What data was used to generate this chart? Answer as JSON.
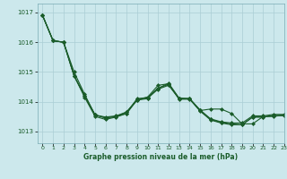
{
  "title": "Graphe pression niveau de la mer (hPa)",
  "background_color": "#cce8ec",
  "grid_color": "#aacdd4",
  "line_color": "#1a5c2a",
  "xlim": [
    -0.5,
    23
  ],
  "ylim": [
    1012.6,
    1017.3
  ],
  "yticks": [
    1013,
    1014,
    1015,
    1016,
    1017
  ],
  "xticks": [
    0,
    1,
    2,
    3,
    4,
    5,
    6,
    7,
    8,
    9,
    10,
    11,
    12,
    13,
    14,
    15,
    16,
    17,
    18,
    19,
    20,
    21,
    22,
    23
  ],
  "series": [
    [
      1016.9,
      1016.05,
      1016.0,
      1015.0,
      1014.25,
      1013.55,
      1013.48,
      1013.52,
      1013.65,
      1014.08,
      1014.15,
      1014.45,
      1014.62,
      1014.12,
      1014.1,
      1013.72,
      1013.42,
      1013.32,
      1013.28,
      1013.28,
      1013.52,
      1013.52,
      1013.57,
      1013.57
    ],
    [
      1016.9,
      1016.05,
      1016.0,
      1014.87,
      1014.2,
      1013.55,
      1013.45,
      1013.5,
      1013.6,
      1014.1,
      1014.12,
      1014.42,
      1014.55,
      1014.1,
      1014.1,
      1013.7,
      1013.75,
      1013.75,
      1013.6,
      1013.25,
      1013.25,
      1013.5,
      1013.5,
      1013.55
    ],
    [
      1016.9,
      1016.05,
      1016.0,
      1014.87,
      1014.2,
      1013.55,
      1013.45,
      1013.5,
      1013.65,
      1014.05,
      1014.15,
      1014.55,
      1014.6,
      1014.1,
      1014.1,
      1013.7,
      1013.4,
      1013.3,
      1013.25,
      1013.22,
      1013.48,
      1013.48,
      1013.53,
      1013.53
    ],
    [
      1016.9,
      1016.05,
      1016.0,
      1014.87,
      1014.15,
      1013.5,
      1013.4,
      1013.48,
      1013.6,
      1014.05,
      1014.1,
      1014.45,
      1014.58,
      1014.08,
      1014.08,
      1013.68,
      1013.38,
      1013.28,
      1013.22,
      1013.22,
      1013.48,
      1013.48,
      1013.53,
      1013.53
    ]
  ]
}
